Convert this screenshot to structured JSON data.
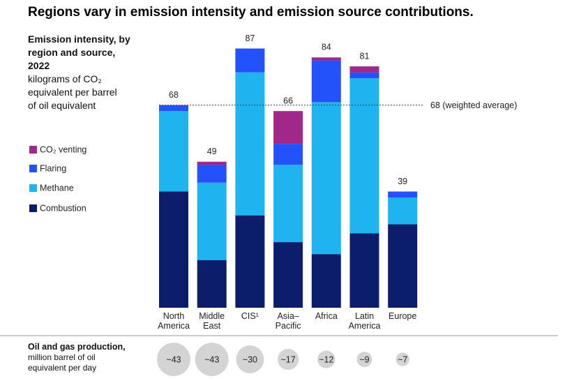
{
  "chart_data": {
    "type": "stacked_bar",
    "title": "Regions vary in emission intensity and emission source contributions.",
    "panel_title": "Emission intensity, by region and source, 2022",
    "subtitle": "kilograms of CO₂ equivalent per barrel of oil equivalent",
    "categories": [
      "North America",
      "Middle East",
      "CIS¹",
      "Asia–Pacific",
      "Africa",
      "Latin America",
      "Europe"
    ],
    "series": [
      {
        "name": "Combustion",
        "color": "#0b1d6b",
        "values": [
          39,
          16,
          31,
          22,
          18,
          25,
          28
        ]
      },
      {
        "name": "Methane",
        "color": "#1fb3ef",
        "values": [
          27,
          26,
          48,
          26,
          51,
          52,
          9
        ]
      },
      {
        "name": "Flaring",
        "color": "#2352fb",
        "values": [
          2,
          6,
          8,
          7,
          14,
          2,
          2
        ]
      },
      {
        "name": "CO₂ venting",
        "color": "#a0288a",
        "values": [
          0,
          1,
          0,
          11,
          1,
          2,
          0
        ]
      }
    ],
    "totals": [
      68,
      49,
      87,
      66,
      84,
      81,
      39
    ],
    "ylim": [
      0,
      90
    ],
    "reference_line": {
      "value": 68,
      "label": "68 (weighted average)"
    },
    "production": {
      "title": "Oil and gas production,",
      "subtitle": "million barrel of oil equivalent per day",
      "values": [
        43,
        43,
        30,
        17,
        12,
        9,
        7
      ],
      "value_labels": [
        "~43",
        "~43",
        "~30",
        "~17",
        "~12",
        "~9",
        "~7"
      ],
      "color": "#d4d4d4"
    }
  }
}
